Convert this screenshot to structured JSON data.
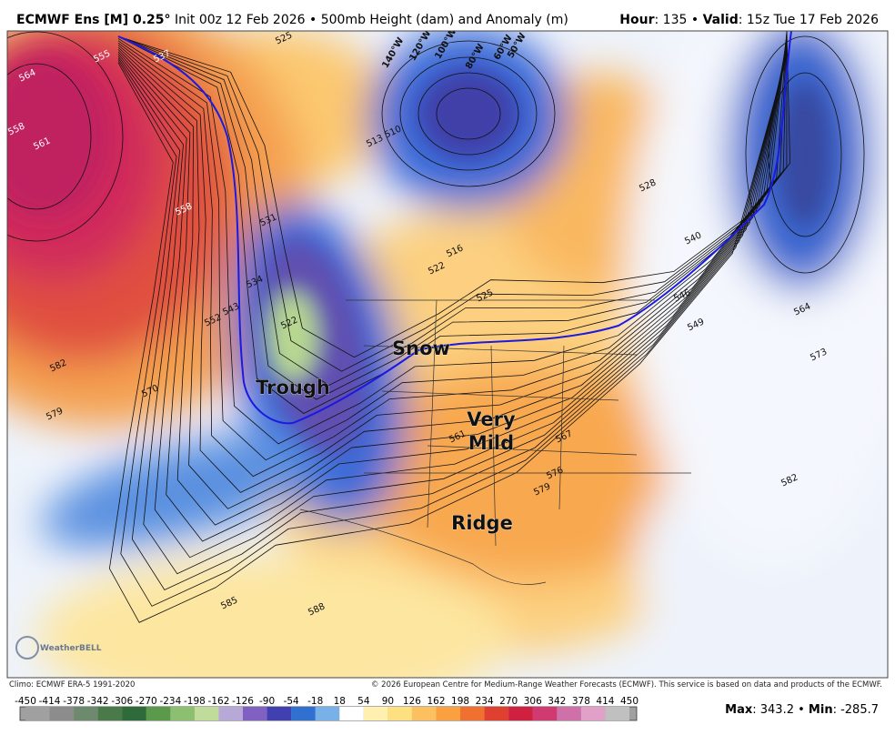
{
  "header": {
    "model": "ECMWF Ens [M] 0.25°",
    "description": "Init 00z 12 Feb 2026 • 500mb Height (dam) and Anomaly (m)",
    "hour_label": "Hour",
    "hour_text": ": 135 •",
    "valid_label": "Valid",
    "valid_text": ": 15z Tue 17 Feb 2026"
  },
  "map": {
    "annotations": {
      "trough": "Trough",
      "snow": "Snow",
      "very_mild": [
        "Very",
        "Mild"
      ],
      "ridge": "Ridge"
    },
    "longitude_labels": [
      "140°W",
      "120°W",
      "100°W",
      "80°W",
      "60°W",
      "50°W"
    ],
    "contour_labels": [
      564,
      555,
      537,
      525,
      558,
      561,
      558,
      552,
      543,
      534,
      531,
      522,
      582,
      579,
      570,
      513,
      510,
      516,
      522,
      525,
      528,
      540,
      546,
      549,
      564,
      573,
      582,
      561,
      567,
      576,
      579,
      585,
      588
    ],
    "logo": "WeatherBELL"
  },
  "footer": {
    "climo": "Climo: ECMWF ERA-5 1991-2020",
    "copyright": "© 2026 European Centre for Medium-Range Weather Forecasts (ECMWF). This service is based on data and products of the ECMWF.",
    "max_label": "Max",
    "max_text": ": 343.2 •",
    "min_label": "Min",
    "min_text": ": -285.7"
  },
  "colorbar": {
    "labels": [
      -450,
      -414,
      -378,
      -342,
      -306,
      -270,
      -234,
      -198,
      -162,
      -126,
      -90,
      -54,
      -18,
      18,
      54,
      90,
      126,
      162,
      198,
      234,
      270,
      306,
      342,
      378,
      414,
      450
    ],
    "colors": [
      "#a0a0a0",
      "#8c8c8c",
      "#6e8a6e",
      "#4a7a4a",
      "#2f6a3a",
      "#5a9a4a",
      "#8cc070",
      "#c0dc9a",
      "#b8a8d8",
      "#8060c0",
      "#4040b0",
      "#3070d0",
      "#78b0e8",
      "#ffffff",
      "#fff0b0",
      "#fde080",
      "#fdc060",
      "#fba040",
      "#f07030",
      "#e04030",
      "#d02040",
      "#d03a70",
      "#d070a8",
      "#e0a0c8",
      "#c0c0c0"
    ]
  }
}
